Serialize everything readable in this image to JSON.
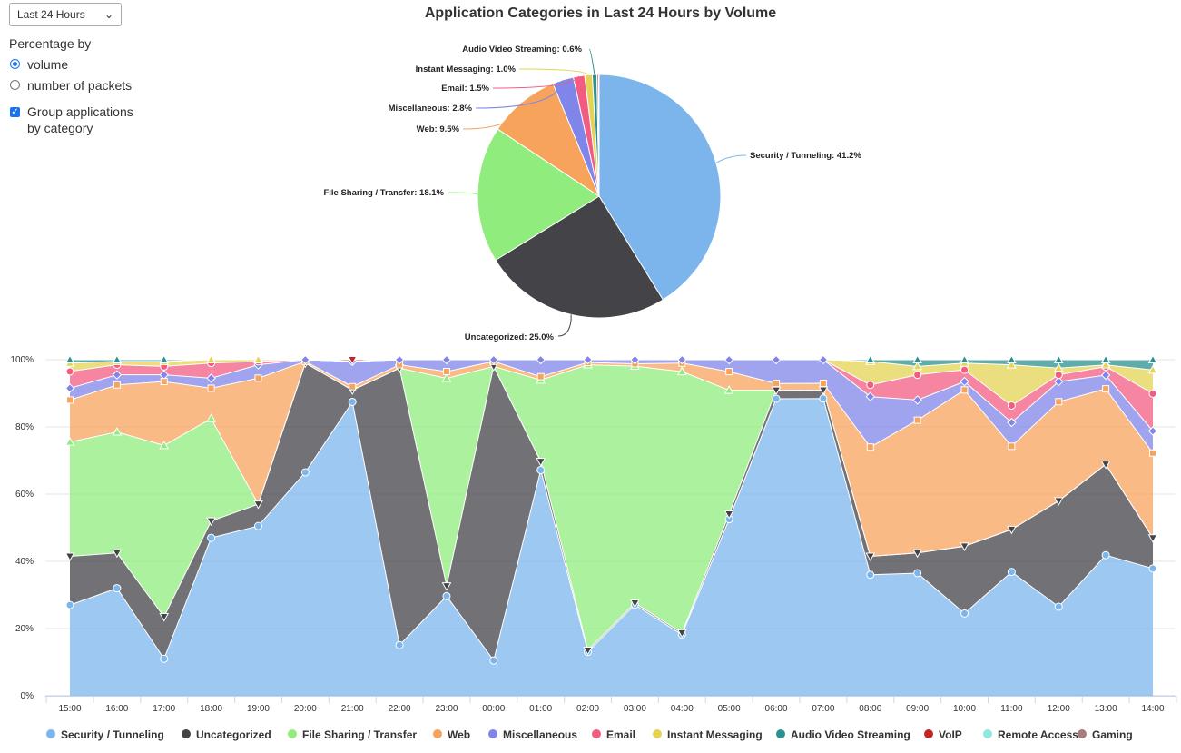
{
  "controls": {
    "range_select": "Last 24 Hours",
    "percentage_label": "Percentage by",
    "radio_volume": "volume",
    "radio_packets": "number of packets",
    "group_line1": "Group applications",
    "group_line2": "by category"
  },
  "colors": {
    "Security / Tunneling": "#7cb5ec",
    "Uncategorized": "#434348",
    "File Sharing / Transfer": "#90ed7d",
    "Web": "#f7a35c",
    "Miscellaneous": "#8085e9",
    "Email": "#f15c80",
    "Instant Messaging": "#e4d354",
    "Audio Video Streaming": "#2b908f",
    "VoIP": "#c42525",
    "Remote Access": "#91e8e1",
    "Gaming": "#a67c7c"
  },
  "chart_data": [
    {
      "type": "pie",
      "title": "Application Categories in Last 24 Hours by Volume",
      "slices": [
        {
          "name": "Security / Tunneling",
          "value": 41.2,
          "label": "Security / Tunneling: 41.2%"
        },
        {
          "name": "Uncategorized",
          "value": 25.0,
          "label": "Uncategorized: 25.0%"
        },
        {
          "name": "File Sharing / Transfer",
          "value": 18.1,
          "label": "File Sharing / Transfer: 18.1%"
        },
        {
          "name": "Web",
          "value": 9.5,
          "label": "Web: 9.5%"
        },
        {
          "name": "Miscellaneous",
          "value": 2.8,
          "label": "Miscellaneous: 2.8%"
        },
        {
          "name": "Email",
          "value": 1.5,
          "label": "Email: 1.5%"
        },
        {
          "name": "Instant Messaging",
          "value": 1.0,
          "label": "Instant Messaging: 1.0%"
        },
        {
          "name": "Audio Video Streaming",
          "value": 0.6,
          "label": "Audio Video Streaming: 0.6%"
        },
        {
          "name": "VoIP",
          "value": 0.2,
          "label": ""
        },
        {
          "name": "Remote Access",
          "value": 0.1,
          "label": ""
        }
      ]
    },
    {
      "type": "area",
      "stacking": "percent",
      "x": [
        "15:00",
        "16:00",
        "17:00",
        "18:00",
        "19:00",
        "20:00",
        "21:00",
        "22:00",
        "23:00",
        "00:00",
        "01:00",
        "02:00",
        "03:00",
        "04:00",
        "05:00",
        "06:00",
        "07:00",
        "08:00",
        "09:00",
        "10:00",
        "11:00",
        "12:00",
        "13:00",
        "14:00"
      ],
      "y_ticks": [
        "0%",
        "20%",
        "40%",
        "60%",
        "80%",
        "100%"
      ],
      "ylim": [
        0,
        100
      ],
      "series": [
        {
          "name": "Security / Tunneling",
          "values": [
            27,
            32,
            11,
            47,
            50.5,
            66.5,
            87,
            15,
            29.5,
            10.5,
            66.5,
            13,
            27,
            18,
            52,
            87.5,
            88,
            36,
            36.5,
            24.5,
            36.5,
            26.5,
            41,
            37.5
          ]
        },
        {
          "name": "Uncategorized",
          "values": [
            14.5,
            10.5,
            12.5,
            5,
            6.5,
            32.5,
            3.5,
            82,
            3,
            87.5,
            2.5,
            0.5,
            0.5,
            0.5,
            1.5,
            2.5,
            2.5,
            5.5,
            6,
            20,
            12.5,
            31.5,
            26.5,
            9
          ]
        },
        {
          "name": "File Sharing / Transfer",
          "values": [
            34,
            36,
            51,
            30.5,
            0,
            0,
            0,
            0,
            61.5,
            0,
            24,
            84.8,
            70.3,
            77,
            36.5,
            0,
            0,
            0,
            0,
            0,
            0,
            0,
            0,
            0
          ]
        },
        {
          "name": "Web",
          "values": [
            12.5,
            14,
            19,
            9,
            37.5,
            0.5,
            1,
            1,
            2,
            1.5,
            1,
            0.7,
            0.7,
            2.5,
            5.5,
            2,
            2,
            32.5,
            39.5,
            46.5,
            24.5,
            29.5,
            22,
            25
          ]
        },
        {
          "name": "Miscellaneous",
          "values": [
            3.5,
            3,
            2,
            3,
            4,
            0.5,
            7.5,
            1.5,
            3.5,
            0.5,
            5,
            0.8,
            1.2,
            1,
            3.5,
            7,
            7,
            15,
            6,
            2.5,
            7,
            6,
            4,
            6.5
          ]
        },
        {
          "name": "Email",
          "values": [
            5,
            3,
            2.5,
            4.5,
            1,
            0,
            0,
            0,
            0,
            0,
            0,
            0,
            0,
            0,
            0,
            0,
            0,
            3.5,
            7.5,
            3.5,
            5,
            2,
            2.5,
            11
          ]
        },
        {
          "name": "Instant Messaging",
          "values": [
            2.5,
            1,
            1.5,
            1,
            0.5,
            0,
            0,
            0,
            0,
            0,
            0,
            0,
            0,
            0,
            0,
            0,
            0,
            7,
            2.5,
            2,
            12,
            2,
            0.5,
            7
          ]
        },
        {
          "name": "Audio Video Streaming",
          "values": [
            1,
            0.5,
            0.5,
            0,
            0,
            0,
            0,
            0,
            0,
            0,
            0,
            0,
            0,
            0,
            0,
            0,
            0,
            0.5,
            2,
            1,
            1.5,
            2.5,
            1.5,
            3
          ]
        },
        {
          "name": "VoIP",
          "values": [
            0,
            0,
            0,
            0,
            0,
            0,
            0.5,
            0,
            0,
            0,
            0,
            0,
            0,
            0,
            0,
            0,
            0,
            0,
            0,
            0,
            0,
            0,
            0,
            0
          ]
        },
        {
          "name": "Remote Access",
          "values": [
            0,
            0,
            0,
            0,
            0,
            0,
            0,
            0,
            0,
            0,
            0,
            0,
            0,
            0,
            0,
            0,
            0,
            0,
            0,
            0,
            0,
            0,
            0,
            0
          ]
        },
        {
          "name": "Gaming",
          "values": [
            0,
            0,
            0,
            0,
            0,
            0,
            0,
            0,
            0,
            0,
            0,
            0,
            0,
            0,
            0,
            0,
            0,
            0,
            0,
            0,
            0,
            0,
            0,
            0
          ]
        }
      ],
      "legend": [
        "Security / Tunneling",
        "Uncategorized",
        "File Sharing / Transfer",
        "Web",
        "Miscellaneous",
        "Email",
        "Instant Messaging",
        "Audio Video Streaming",
        "VoIP",
        "Remote Access",
        "Gaming"
      ],
      "legend_position": "bottom"
    }
  ]
}
